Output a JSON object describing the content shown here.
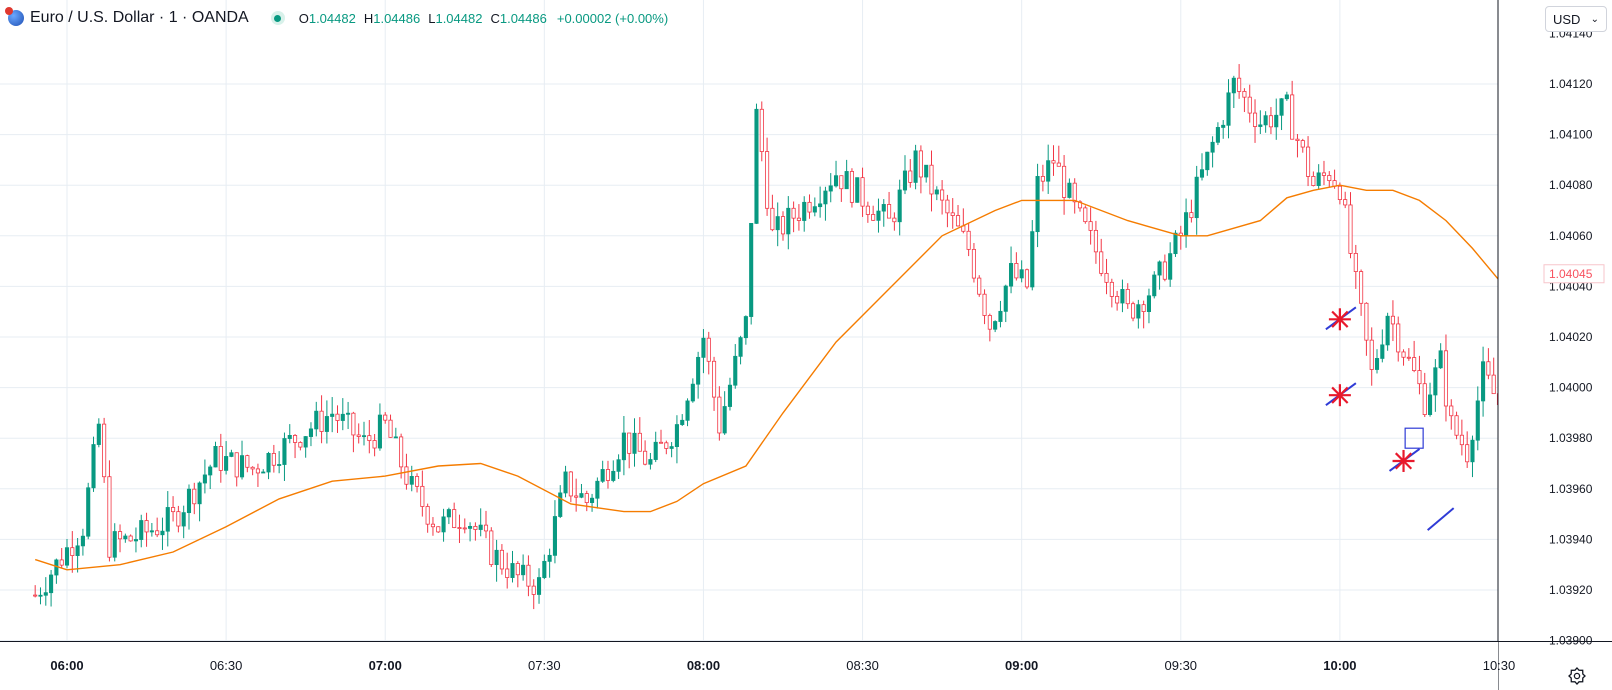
{
  "header": {
    "symbol_title": "Euro / U.S. Dollar · 1 · OANDA",
    "symbol_icon": "eur-usd-flag-icon",
    "market_status_icon": "market-open-dot-icon",
    "ohlc": {
      "open_label": "O",
      "open": "1.04482",
      "high_label": "H",
      "high": "1.04486",
      "low_label": "L",
      "low": "1.04482",
      "close_label": "C",
      "close": "1.04486",
      "change": "+0.00002 (+0.00%)"
    }
  },
  "currency_selector": {
    "value": "USD",
    "icon": "chevron-down-icon"
  },
  "settings": {
    "icon": "gear-icon"
  },
  "colors": {
    "up": "#089981",
    "down": "#f23645",
    "ma_line": "#f57c00",
    "grid": "#e7edf3",
    "axis_text": "#131722",
    "price_label": "#f7525f",
    "drawing_star": "#e8192c",
    "drawing_line": "#2f3bd6"
  },
  "price_axis": {
    "labels": [
      "1.04120",
      "1.04100",
      "1.04080",
      "1.04060",
      "1.04040",
      "1.04020",
      "1.04000",
      "1.03980",
      "1.03960",
      "1.03940",
      "1.03920",
      "1.03900"
    ],
    "top_partial": "1.04140",
    "current_price_label": "1.04045"
  },
  "time_axis": {
    "labels": [
      "06:00",
      "06:30",
      "07:00",
      "07:30",
      "08:00",
      "08:30",
      "09:00",
      "09:30",
      "10:00",
      "10:30"
    ],
    "bold": [
      "06:00",
      "07:00",
      "08:00",
      "09:00",
      "10:00"
    ]
  },
  "chart_data": {
    "type": "candlestick",
    "symbol": "Euro / U.S. Dollar · 1 · OANDA",
    "interval_minutes": 1,
    "x_start_time": "05:54",
    "x_end_time": "10:31",
    "ylim": [
      1.03895,
      1.04145
    ],
    "x": [
      "06:00",
      "06:30",
      "07:00",
      "07:30",
      "08:00",
      "08:30",
      "09:00",
      "09:30",
      "10:00",
      "10:30"
    ],
    "grid": true,
    "price_path": [
      [
        "05:54",
        1.03918
      ],
      [
        "06:03",
        1.03945
      ],
      [
        "06:06",
        1.03985
      ],
      [
        "06:08",
        1.03938
      ],
      [
        "06:12",
        1.0394
      ],
      [
        "06:20",
        1.03948
      ],
      [
        "06:28",
        1.03972
      ],
      [
        "06:35",
        1.03968
      ],
      [
        "06:45",
        1.03983
      ],
      [
        "06:50",
        1.0399
      ],
      [
        "06:56",
        1.03978
      ],
      [
        "07:00",
        1.03985
      ],
      [
        "07:05",
        1.0396
      ],
      [
        "07:10",
        1.03945
      ],
      [
        "07:15",
        1.0395
      ],
      [
        "07:20",
        1.03935
      ],
      [
        "07:25",
        1.03925
      ],
      [
        "07:29",
        1.03922
      ],
      [
        "07:34",
        1.03962
      ],
      [
        "07:38",
        1.03955
      ],
      [
        "07:45",
        1.0398
      ],
      [
        "07:50",
        1.0397
      ],
      [
        "07:55",
        1.03985
      ],
      [
        "08:00",
        1.0402
      ],
      [
        "08:03",
        1.03985
      ],
      [
        "08:08",
        1.04025
      ],
      [
        "08:10",
        1.0411
      ],
      [
        "08:13",
        1.0406
      ],
      [
        "08:18",
        1.0407
      ],
      [
        "08:25",
        1.04085
      ],
      [
        "08:30",
        1.04075
      ],
      [
        "08:35",
        1.04065
      ],
      [
        "08:40",
        1.0409
      ],
      [
        "08:44",
        1.04075
      ],
      [
        "08:50",
        1.04055
      ],
      [
        "08:54",
        1.04025
      ],
      [
        "08:58",
        1.04045
      ],
      [
        "09:01",
        1.0404
      ],
      [
        "09:03",
        1.0408
      ],
      [
        "09:06",
        1.0409
      ],
      [
        "09:10",
        1.0407
      ],
      [
        "09:15",
        1.0405
      ],
      [
        "09:20",
        1.0403
      ],
      [
        "09:25",
        1.0404
      ],
      [
        "09:30",
        1.0406
      ],
      [
        "09:35",
        1.0409
      ],
      [
        "09:40",
        1.0412
      ],
      [
        "09:45",
        1.04105
      ],
      [
        "09:50",
        1.0411
      ],
      [
        "09:55",
        1.0408
      ],
      [
        "09:58",
        1.04085
      ],
      [
        "10:00",
        1.0408
      ],
      [
        "10:03",
        1.0404
      ],
      [
        "10:06",
        1.04005
      ],
      [
        "10:09",
        1.0403
      ],
      [
        "10:12",
        1.04015
      ],
      [
        "10:16",
        1.03995
      ],
      [
        "10:19",
        1.0401
      ],
      [
        "10:21",
        1.03985
      ],
      [
        "10:24",
        1.03975
      ],
      [
        "10:27",
        1.04005
      ],
      [
        "10:31",
        1.0399
      ]
    ],
    "moving_average": {
      "path": [
        [
          "05:54",
          1.03932
        ],
        [
          "06:00",
          1.03928
        ],
        [
          "06:10",
          1.0393
        ],
        [
          "06:20",
          1.03935
        ],
        [
          "06:30",
          1.03945
        ],
        [
          "06:40",
          1.03956
        ],
        [
          "06:50",
          1.03963
        ],
        [
          "07:00",
          1.03965
        ],
        [
          "07:10",
          1.03969
        ],
        [
          "07:18",
          1.0397
        ],
        [
          "07:25",
          1.03965
        ],
        [
          "07:35",
          1.03954
        ],
        [
          "07:45",
          1.03951
        ],
        [
          "07:50",
          1.03951
        ],
        [
          "07:55",
          1.03955
        ],
        [
          "08:00",
          1.03962
        ],
        [
          "08:08",
          1.03969
        ],
        [
          "08:15",
          1.0399
        ],
        [
          "08:25",
          1.04018
        ],
        [
          "08:35",
          1.04039
        ],
        [
          "08:45",
          1.0406
        ],
        [
          "08:55",
          1.0407
        ],
        [
          "09:00",
          1.04074
        ],
        [
          "09:10",
          1.04074
        ],
        [
          "09:20",
          1.04066
        ],
        [
          "09:30",
          1.0406
        ],
        [
          "09:35",
          1.0406
        ],
        [
          "09:45",
          1.04066
        ],
        [
          "09:50",
          1.04075
        ],
        [
          "09:55",
          1.04078
        ],
        [
          "10:00",
          1.0408
        ],
        [
          "10:05",
          1.04078
        ],
        [
          "10:10",
          1.04078
        ],
        [
          "10:15",
          1.04074
        ],
        [
          "10:20",
          1.04066
        ],
        [
          "10:25",
          1.04055
        ],
        [
          "10:31",
          1.0404
        ]
      ]
    },
    "drawings": [
      {
        "kind": "star-with-line",
        "time": "10:00",
        "price": 1.04027
      },
      {
        "kind": "star-with-line",
        "time": "10:00",
        "price": 1.03997
      },
      {
        "kind": "star-with-line",
        "time": "10:12",
        "price": 1.03971
      },
      {
        "kind": "square",
        "time": "10:14",
        "price": 1.0398
      },
      {
        "kind": "line",
        "time": "10:19",
        "price": 1.03948
      }
    ]
  }
}
